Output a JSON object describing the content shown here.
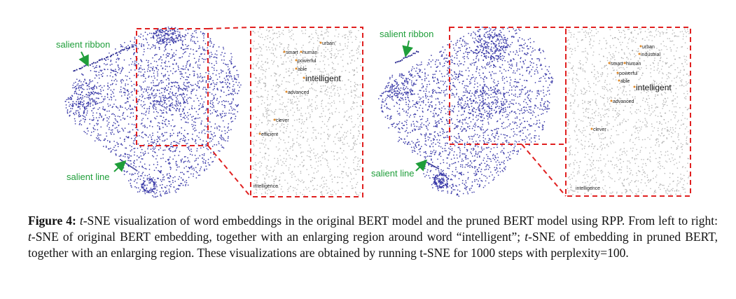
{
  "panels": [
    {
      "labels": {
        "ribbon": "salient ribbon",
        "line": "salient line"
      },
      "zoom_words": [
        "urban",
        "smart",
        "human",
        "powerful",
        "able",
        "intelligent",
        "advanced",
        "clever",
        "efficient",
        "intelligence"
      ]
    },
    {
      "labels": {
        "ribbon": "salient ribbon",
        "line": "salient line"
      },
      "zoom_words": [
        "urban",
        "industrial",
        "smart",
        "human",
        "powerful",
        "able",
        "intelligent",
        "advanced",
        "clever",
        "intelligence"
      ]
    }
  ],
  "caption": {
    "label": "Figure 4:",
    "text_1a": " ",
    "t1": "t",
    "text_1b": "-SNE visualization of word embeddings in the original BERT model and the pruned BERT model using RPP. From left to right: ",
    "t2": "t",
    "text_2": "-SNE of original BERT embedding, together with an enlarging region around word “intelligent”; ",
    "t3": "t",
    "text_3": "-SNE of embedding in pruned BERT, together with an enlarging region. These visualizations are obtained by running t-SNE for 1000 steps with perplexity=100."
  },
  "colors": {
    "dots": "#3a3aa8",
    "grey_dots": "#9a9a9a",
    "dash": "#e02020",
    "green": "#1f9e3a",
    "orange": "#e08a2a"
  }
}
